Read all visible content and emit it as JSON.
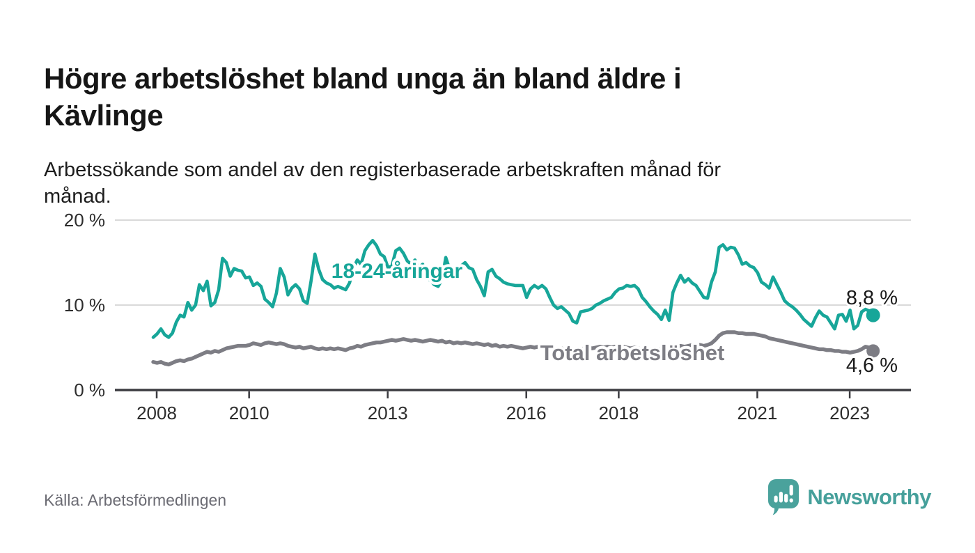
{
  "title": {
    "line1": "Högre arbetslöshet bland unga än bland äldre i",
    "line2": "Kävlinge"
  },
  "subtitle": "Arbetssökande som andel av den registerbaserade arbetskraften månad för månad.",
  "source": "Källa: Arbetsförmedlingen",
  "branding": {
    "name": "Newsworthy",
    "icon": "newsworthy-speech-bubble-bar-chart-icon",
    "color": "#46a09b"
  },
  "colors": {
    "youth_line": "#17a699",
    "total_line": "#7d7d84",
    "grid": "#d9d9d9",
    "axis": "#3b3b40",
    "tick_text": "#2d2d2d",
    "end_label_text": "#1b1b1b",
    "background": "#ffffff"
  },
  "chart_data": {
    "type": "line",
    "title": "Högre arbetslöshet bland unga än bland äldre i Kävlinge",
    "subtitle": "Arbetssökande som andel av den registerbaserade arbetskraften månad för månad.",
    "frequency": "monthly",
    "x_start": "2008-01",
    "x_end": "2023-08",
    "grid": "horizontal",
    "ylim": [
      0,
      21.5
    ],
    "y_ticks": [
      {
        "value": 0,
        "label": "0 %"
      },
      {
        "value": 10,
        "label": "10 %"
      },
      {
        "value": 20,
        "label": "20 %"
      }
    ],
    "x_ticks": [
      {
        "year": 2008,
        "label": "2008"
      },
      {
        "year": 2010,
        "label": "2010"
      },
      {
        "year": 2013,
        "label": "2013"
      },
      {
        "year": 2016,
        "label": "2016"
      },
      {
        "year": 2018,
        "label": "2018"
      },
      {
        "year": 2021,
        "label": "2021"
      },
      {
        "year": 2023,
        "label": "2023"
      }
    ],
    "series": [
      {
        "name": "18-24-åringar",
        "color": "#17a699",
        "end_value": 8.8,
        "end_label": "8,8 %",
        "values": [
          6.2,
          6.6,
          7.2,
          6.5,
          6.2,
          6.7,
          8.0,
          8.8,
          8.6,
          10.3,
          9.4,
          10.0,
          12.4,
          11.7,
          12.8,
          9.9,
          10.3,
          11.8,
          15.5,
          15.0,
          13.4,
          14.3,
          14.1,
          14.0,
          13.2,
          13.3,
          12.3,
          12.6,
          12.2,
          10.7,
          10.3,
          9.8,
          11.4,
          14.3,
          13.3,
          11.2,
          12.0,
          12.4,
          11.9,
          10.5,
          10.2,
          12.8,
          16.0,
          14.2,
          13.0,
          12.6,
          12.4,
          12.0,
          12.2,
          12.0,
          11.8,
          12.6,
          14.4,
          15.3,
          14.8,
          16.4,
          17.1,
          17.6,
          17.0,
          16.0,
          15.7,
          14.4,
          14.6,
          16.4,
          16.7,
          16.1,
          15.2,
          14.8,
          15.3,
          14.4,
          14.8,
          13.3,
          12.9,
          12.4,
          12.2,
          13.0,
          15.6,
          14.2,
          13.8,
          13.7,
          14.6,
          15.0,
          14.4,
          14.2,
          13.0,
          12.2,
          11.1,
          13.9,
          14.2,
          13.4,
          13.1,
          12.7,
          12.5,
          12.4,
          12.3,
          12.3,
          12.3,
          10.9,
          11.9,
          12.3,
          12.0,
          12.3,
          11.9,
          10.9,
          10.0,
          9.6,
          9.8,
          9.4,
          9.0,
          8.1,
          7.9,
          9.2,
          9.3,
          9.4,
          9.6,
          10.0,
          10.2,
          10.5,
          10.7,
          10.9,
          11.5,
          11.9,
          12.0,
          12.3,
          12.2,
          12.3,
          11.9,
          10.9,
          10.4,
          9.8,
          9.3,
          8.9,
          8.3,
          9.4,
          8.2,
          11.5,
          12.6,
          13.5,
          12.7,
          13.1,
          12.6,
          12.3,
          11.6,
          10.9,
          10.8,
          12.7,
          13.9,
          16.8,
          17.1,
          16.5,
          16.8,
          16.7,
          15.9,
          14.8,
          15.0,
          14.6,
          14.4,
          13.8,
          12.7,
          12.4,
          12.0,
          13.3,
          12.4,
          11.5,
          10.5,
          10.1,
          9.8,
          9.4,
          8.9,
          8.3,
          7.9,
          7.5,
          8.5,
          9.3,
          8.8,
          8.6,
          7.9,
          7.2,
          8.8,
          8.9,
          8.1,
          9.4,
          7.2,
          7.6,
          9.2,
          9.5,
          9.3,
          8.8
        ]
      },
      {
        "name": "Total arbetslöshet",
        "color": "#7d7d84",
        "end_value": 4.6,
        "end_label": "4,6 %",
        "values": [
          3.3,
          3.2,
          3.3,
          3.1,
          3.0,
          3.2,
          3.4,
          3.5,
          3.4,
          3.6,
          3.7,
          3.9,
          4.1,
          4.3,
          4.5,
          4.4,
          4.6,
          4.5,
          4.7,
          4.9,
          5.0,
          5.1,
          5.2,
          5.2,
          5.2,
          5.3,
          5.5,
          5.4,
          5.3,
          5.5,
          5.6,
          5.5,
          5.4,
          5.5,
          5.4,
          5.2,
          5.1,
          5.0,
          5.1,
          4.9,
          5.0,
          5.1,
          4.9,
          4.8,
          4.9,
          4.8,
          4.9,
          4.8,
          4.9,
          4.8,
          4.7,
          4.9,
          5.0,
          5.2,
          5.1,
          5.3,
          5.4,
          5.5,
          5.6,
          5.6,
          5.7,
          5.8,
          5.9,
          5.8,
          5.9,
          6.0,
          5.9,
          5.8,
          5.9,
          5.8,
          5.7,
          5.8,
          5.9,
          5.8,
          5.7,
          5.8,
          5.6,
          5.7,
          5.5,
          5.6,
          5.5,
          5.6,
          5.5,
          5.4,
          5.5,
          5.4,
          5.3,
          5.4,
          5.2,
          5.3,
          5.1,
          5.2,
          5.1,
          5.2,
          5.1,
          5.0,
          4.9,
          5.0,
          5.1,
          5.0,
          5.1,
          5.0,
          4.9,
          5.0,
          4.9,
          4.8,
          4.9,
          4.8,
          4.7,
          4.8,
          4.7,
          4.8,
          4.9,
          5.0,
          4.9,
          5.0,
          5.1,
          5.0,
          5.1,
          5.0,
          5.1,
          5.0,
          5.1,
          5.0,
          4.9,
          5.0,
          4.9,
          4.8,
          4.9,
          4.8,
          4.9,
          4.8,
          4.9,
          4.8,
          4.9,
          5.0,
          5.1,
          5.2,
          5.1,
          5.2,
          5.3,
          5.2,
          5.3,
          5.2,
          5.3,
          5.5,
          5.9,
          6.4,
          6.7,
          6.8,
          6.8,
          6.8,
          6.7,
          6.7,
          6.6,
          6.6,
          6.6,
          6.5,
          6.4,
          6.3,
          6.1,
          6.0,
          5.9,
          5.8,
          5.7,
          5.6,
          5.5,
          5.4,
          5.3,
          5.2,
          5.1,
          5.0,
          4.9,
          4.8,
          4.8,
          4.7,
          4.7,
          4.6,
          4.6,
          4.5,
          4.5,
          4.4,
          4.5,
          4.6,
          4.8,
          5.1,
          5.0,
          4.6
        ]
      }
    ]
  }
}
